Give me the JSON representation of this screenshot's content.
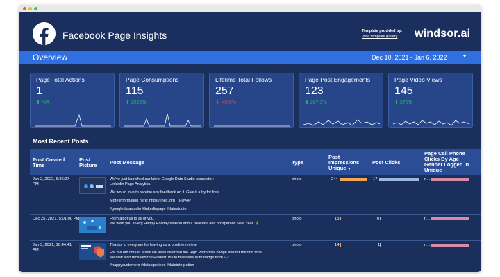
{
  "header": {
    "title": "Facebook Page Insights",
    "template_label": "Template provided by:",
    "template_link": "view template gallery",
    "brand": "windsor.ai"
  },
  "overview": {
    "title": "Overview",
    "date_range": "Dec 10, 2021 - Jan 6, 2022"
  },
  "kpis": [
    {
      "label": "Page Total Actions",
      "value": "1",
      "delta": "N/A",
      "direction": "up"
    },
    {
      "label": "Page Consumptions",
      "value": "115",
      "delta": "2625%",
      "direction": "up"
    },
    {
      "label": "Lifetime Total Follows",
      "value": "257",
      "delta": "-49.5%",
      "direction": "down"
    },
    {
      "label": "Page Post Engagements",
      "value": "123",
      "delta": "267.3%",
      "direction": "up"
    },
    {
      "label": "Page Video Views",
      "value": "145",
      "delta": "375%",
      "direction": "up"
    }
  ],
  "posts": {
    "title": "Most Recent Posts",
    "columns": {
      "created": "Post Created Time",
      "picture": "Post Picture",
      "message": "Post Message",
      "type": "Type",
      "impressions": "Post Impressions Unique",
      "clicks": "Post Clicks",
      "page_call": "Page Call Phone Clicks By Age Gender Logged In Unique"
    },
    "rows": [
      {
        "created": "Jan 2, 2022, 6:36:27 PM",
        "message": [
          "We've just launched our latest Google Data Studio connector:",
          "Linkedin Page Analytics.",
          "We would love to receive any feedback on it. Give it a try for free.",
          "More information here: https://lnkd.in/d__FDv4P",
          "#googledatastudio #linkedinpage #datastudio"
        ],
        "type": "photo",
        "impressions": "244",
        "impressions_fraction": 1.0,
        "clicks": "17",
        "clicks_fraction": 1.0,
        "page_call": "n...",
        "page_call_fraction": 1.0
      },
      {
        "created": "Dec 25, 2021, 5:01:00 PM",
        "message": [
          "From all of us to all of you.",
          "We wish you a very Happy Holiday season and a peaceful and prosperous New Year. 🎄"
        ],
        "type": "photo",
        "impressions": "15",
        "impressions_fraction": 0.06,
        "clicks": "0",
        "clicks_fraction": 0.0,
        "page_call": "n...",
        "page_call_fraction": 1.0
      },
      {
        "created": "Jan 3, 2021, 10:44:41 AM",
        "message": [
          "Thanks to everyone for leaving us a positive review!",
          "For the 8th time in a row we were awarded the High Performer badge and for the first time",
          "we now also received the Easiest To Do Business With badge from G2.",
          "#happycustomers #datapipelines #dataintegration"
        ],
        "type": "photo",
        "impressions": "14",
        "impressions_fraction": 0.06,
        "clicks": "1",
        "clicks_fraction": 0.06,
        "page_call": "n...",
        "page_call_fraction": 1.0
      }
    ]
  },
  "colors": {
    "background": "#1a2f5c",
    "overview_bar": "#2f6fe0",
    "positive": "#2bb673",
    "negative": "#e5474f",
    "impressions_bar": "#f1a555",
    "clicks_bar": "#9bb7e8",
    "page_call_bar": "#d98aa4"
  },
  "icons": {
    "logo": "facebook-logo-icon",
    "date_dropdown": "chevron-down-icon",
    "delta_up": "arrow-up-icon",
    "delta_down": "arrow-down-icon",
    "sort": "sort-descending-icon"
  }
}
